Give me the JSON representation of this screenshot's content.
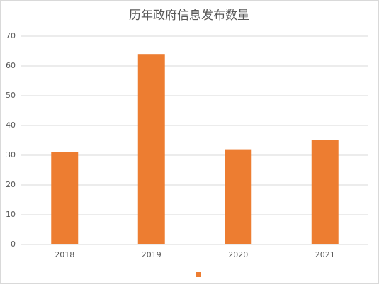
{
  "chart_data": {
    "type": "bar",
    "title": "历年政府信息发布数量",
    "categories": [
      "2018",
      "2019",
      "2020",
      "2021"
    ],
    "values": [
      31,
      64,
      32,
      35
    ],
    "color": "#ed7d31",
    "ylim": [
      0,
      70
    ],
    "yticks": [
      0,
      10,
      20,
      30,
      40,
      50,
      60,
      70
    ],
    "grid": true,
    "legend": "bottom"
  }
}
